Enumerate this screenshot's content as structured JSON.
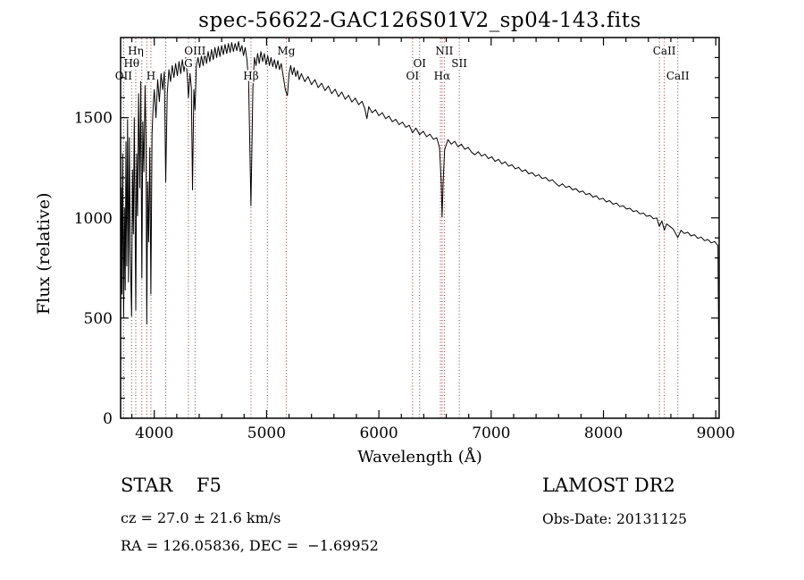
{
  "annotations": {
    "class_label": "STAR    F5",
    "cz_label": "cz = 27.0 ± 21.6 km/s",
    "radec_label": "RA = 126.05836, DEC =  −1.69952",
    "survey_label": "LAMOST DR2",
    "obsdate_label": "Obs-Date: 20131125"
  },
  "chart_data": {
    "type": "line",
    "title": "spec-56622-GAC126S01V2_sp04-143.fits",
    "xlabel": "Wavelength (Å)",
    "ylabel": "Flux (relative)",
    "xlim": [
      3700,
      9030
    ],
    "ylim": [
      0,
      1900
    ],
    "x_ticks": [
      4000,
      5000,
      6000,
      7000,
      8000,
      9000
    ],
    "y_ticks": [
      0,
      500,
      1000,
      1500
    ],
    "x_minor_step": 200,
    "y_minor_step": 100,
    "grid": false,
    "legend": "none",
    "curve_color": "#000000",
    "marker_line_color": "#8e3a3a",
    "spectral_lines": [
      {
        "label": "OII",
        "wavelength": 3727,
        "row": 3
      },
      {
        "label": "Hθ",
        "wavelength": 3798,
        "row": 2
      },
      {
        "label": "Hη",
        "wavelength": 3835,
        "row": 1
      },
      {
        "label": "",
        "wavelength": 3889,
        "row": 0
      },
      {
        "label": "",
        "wavelength": 3933,
        "row": 0
      },
      {
        "label": "H",
        "wavelength": 3970,
        "row": 3
      },
      {
        "label": "",
        "wavelength": 4102,
        "row": 0
      },
      {
        "label": "G",
        "wavelength": 4304,
        "row": 2
      },
      {
        "label": "OIII",
        "wavelength": 4363,
        "row": 1
      },
      {
        "label": "Hβ",
        "wavelength": 4861,
        "row": 3
      },
      {
        "label": "",
        "wavelength": 5007,
        "row": 0
      },
      {
        "label": "Mg",
        "wavelength": 5175,
        "row": 1
      },
      {
        "label": "OI",
        "wavelength": 6300,
        "row": 3
      },
      {
        "label": "OI",
        "wavelength": 6363,
        "row": 2
      },
      {
        "label": "",
        "wavelength": 6548,
        "row": 0
      },
      {
        "label": "Hα",
        "wavelength": 6563,
        "row": 3
      },
      {
        "label": "NII",
        "wavelength": 6583,
        "row": 1
      },
      {
        "label": "SII",
        "wavelength": 6716,
        "row": 2
      },
      {
        "label": "",
        "wavelength": 8498,
        "row": 0
      },
      {
        "label": "CaII",
        "wavelength": 8542,
        "row": 1
      },
      {
        "label": "CaII",
        "wavelength": 8662,
        "row": 3
      }
    ],
    "series": [
      {
        "name": "spectrum",
        "x": [
          3700,
          3706,
          3712,
          3718,
          3727,
          3734,
          3741,
          3748,
          3755,
          3762,
          3770,
          3778,
          3786,
          3798,
          3806,
          3814,
          3822,
          3835,
          3843,
          3851,
          3860,
          3870,
          3880,
          3889,
          3898,
          3908,
          3918,
          3926,
          3933,
          3941,
          3950,
          3960,
          3970,
          3980,
          3990,
          4000,
          4015,
          4030,
          4045,
          4060,
          4075,
          4090,
          4102,
          4115,
          4130,
          4145,
          4160,
          4175,
          4190,
          4205,
          4220,
          4235,
          4250,
          4265,
          4280,
          4295,
          4304,
          4318,
          4330,
          4340,
          4352,
          4363,
          4375,
          4390,
          4405,
          4420,
          4435,
          4450,
          4465,
          4480,
          4495,
          4510,
          4525,
          4540,
          4555,
          4570,
          4585,
          4600,
          4615,
          4630,
          4645,
          4660,
          4675,
          4690,
          4705,
          4720,
          4735,
          4750,
          4765,
          4780,
          4795,
          4810,
          4825,
          4840,
          4861,
          4878,
          4892,
          4906,
          4920,
          4935,
          4950,
          4965,
          4980,
          4995,
          5010,
          5025,
          5040,
          5055,
          5070,
          5085,
          5100,
          5115,
          5130,
          5145,
          5167,
          5185,
          5200,
          5215,
          5230,
          5245,
          5260,
          5275,
          5290,
          5310,
          5340,
          5370,
          5400,
          5430,
          5460,
          5490,
          5520,
          5550,
          5580,
          5610,
          5640,
          5670,
          5700,
          5730,
          5760,
          5790,
          5820,
          5850,
          5875,
          5893,
          5910,
          5940,
          5970,
          6000,
          6030,
          6060,
          6090,
          6120,
          6150,
          6180,
          6210,
          6240,
          6270,
          6300,
          6330,
          6363,
          6395,
          6425,
          6455,
          6485,
          6515,
          6540,
          6555,
          6563,
          6572,
          6585,
          6615,
          6645,
          6675,
          6705,
          6735,
          6765,
          6795,
          6825,
          6855,
          6885,
          6915,
          6945,
          6975,
          7005,
          7035,
          7065,
          7095,
          7125,
          7155,
          7185,
          7215,
          7245,
          7275,
          7305,
          7335,
          7365,
          7395,
          7425,
          7455,
          7485,
          7515,
          7545,
          7575,
          7605,
          7635,
          7665,
          7695,
          7725,
          7755,
          7785,
          7815,
          7845,
          7875,
          7905,
          7935,
          7965,
          7995,
          8025,
          8055,
          8085,
          8115,
          8145,
          8175,
          8205,
          8235,
          8265,
          8295,
          8325,
          8355,
          8385,
          8415,
          8445,
          8475,
          8498,
          8520,
          8542,
          8562,
          8590,
          8620,
          8662,
          8690,
          8720,
          8750,
          8780,
          8810,
          8840,
          8870,
          8900,
          8930,
          8960,
          8990,
          9010,
          9020,
          9030
        ],
        "y": [
          420,
          1150,
          620,
          1320,
          500,
          1050,
          640,
          1380,
          760,
          1490,
          680,
          1400,
          830,
          510,
          1240,
          920,
          1500,
          540,
          1320,
          1010,
          1620,
          1150,
          1680,
          700,
          1480,
          1230,
          1660,
          1400,
          470,
          1180,
          880,
          1350,
          620,
          1420,
          1560,
          1640,
          1500,
          1690,
          1580,
          1720,
          1640,
          1730,
          1180,
          1620,
          1740,
          1680,
          1760,
          1700,
          1770,
          1710,
          1780,
          1720,
          1790,
          1730,
          1800,
          1700,
          1600,
          1720,
          1650,
          1140,
          1640,
          1540,
          1760,
          1800,
          1750,
          1810,
          1760,
          1820,
          1770,
          1830,
          1780,
          1840,
          1790,
          1850,
          1800,
          1855,
          1805,
          1860,
          1815,
          1865,
          1820,
          1870,
          1825,
          1875,
          1830,
          1870,
          1835,
          1880,
          1830,
          1860,
          1810,
          1850,
          1790,
          1680,
          1060,
          1650,
          1800,
          1760,
          1820,
          1770,
          1830,
          1780,
          1820,
          1765,
          1810,
          1760,
          1800,
          1755,
          1790,
          1745,
          1785,
          1740,
          1770,
          1720,
          1640,
          1610,
          1720,
          1760,
          1715,
          1750,
          1705,
          1735,
          1690,
          1720,
          1680,
          1705,
          1665,
          1690,
          1650,
          1672,
          1635,
          1658,
          1620,
          1642,
          1605,
          1628,
          1592,
          1612,
          1578,
          1598,
          1565,
          1582,
          1545,
          1495,
          1555,
          1525,
          1540,
          1510,
          1525,
          1495,
          1508,
          1480,
          1492,
          1465,
          1478,
          1452,
          1462,
          1425,
          1448,
          1415,
          1432,
          1405,
          1418,
          1392,
          1400,
          1350,
          1180,
          1005,
          1170,
          1340,
          1390,
          1368,
          1382,
          1355,
          1368,
          1342,
          1352,
          1328,
          1315,
          1330,
          1308,
          1318,
          1295,
          1305,
          1282,
          1292,
          1270,
          1280,
          1258,
          1265,
          1245,
          1252,
          1232,
          1240,
          1220,
          1226,
          1208,
          1215,
          1196,
          1202,
          1184,
          1190,
          1172,
          1158,
          1170,
          1152,
          1158,
          1140,
          1146,
          1128,
          1134,
          1116,
          1122,
          1104,
          1110,
          1092,
          1098,
          1080,
          1086,
          1068,
          1074,
          1056,
          1060,
          1044,
          1048,
          1032,
          1036,
          1020,
          1024,
          1008,
          1012,
          996,
          1000,
          958,
          985,
          938,
          970,
          958,
          945,
          902,
          938,
          922,
          928,
          910,
          916,
          898,
          904,
          886,
          892,
          875,
          882,
          868,
          862,
          60
        ]
      }
    ]
  }
}
